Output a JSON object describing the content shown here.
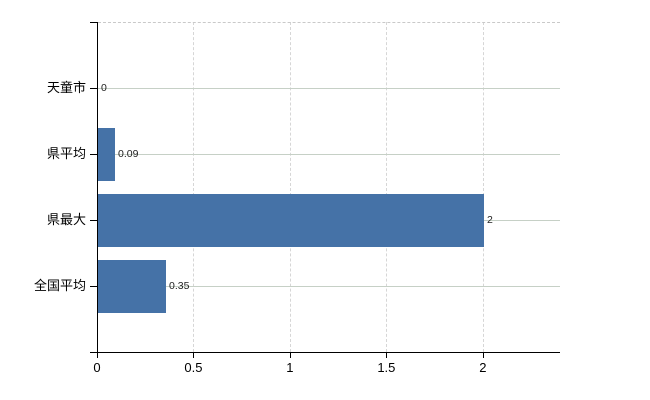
{
  "chart_data": {
    "type": "bar",
    "orientation": "horizontal",
    "title": "",
    "xlabel": "",
    "ylabel": "",
    "categories": [
      "天童市",
      "県平均",
      "県最大",
      "全国平均"
    ],
    "values": [
      0,
      0.09,
      2,
      0.35
    ],
    "value_labels": [
      "0",
      "0.09",
      "2",
      "0.35"
    ],
    "x_ticks": [
      0,
      0.5,
      1,
      1.5,
      2
    ],
    "x_tick_labels": [
      "0",
      "0.5",
      "1",
      "1.5",
      "2"
    ],
    "xlim": [
      0,
      2.4
    ],
    "grid": true,
    "legend": "none",
    "bar_color": "#4572a7"
  },
  "colors": {
    "background": "#ffffff",
    "bar": "#4572a7",
    "axis": "#000000",
    "h_gridline": "#c6d0c6",
    "v_gridline": "#d6d6d6",
    "top_border": "#c9c9c9",
    "category_text": "#000000",
    "tick_text": "#000000",
    "value_text": "#222222"
  }
}
